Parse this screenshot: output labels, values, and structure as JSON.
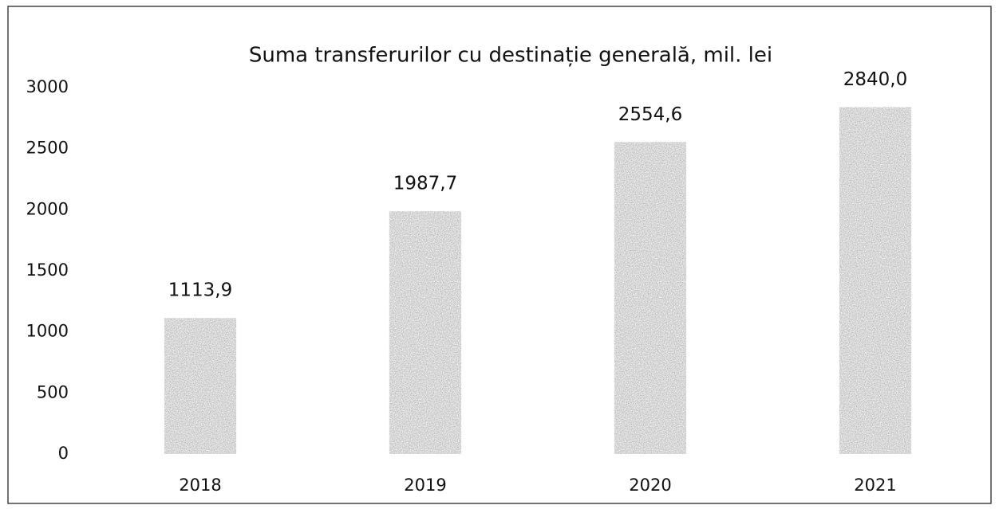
{
  "chart_data": {
    "type": "bar",
    "title": "Suma transferurilor cu destinație generală, mil. lei",
    "categories": [
      "2018",
      "2019",
      "2020",
      "2021"
    ],
    "values": [
      1113.9,
      1987.7,
      2554.6,
      2840.0
    ],
    "value_labels": [
      "1113,9",
      "1987,7",
      "2554,6",
      "2840,0"
    ],
    "color": "#9c9c9c",
    "ylim": [
      0,
      3000
    ],
    "yticks": [
      0,
      500,
      1000,
      1500,
      2000,
      2500,
      3000
    ],
    "grid": false
  }
}
